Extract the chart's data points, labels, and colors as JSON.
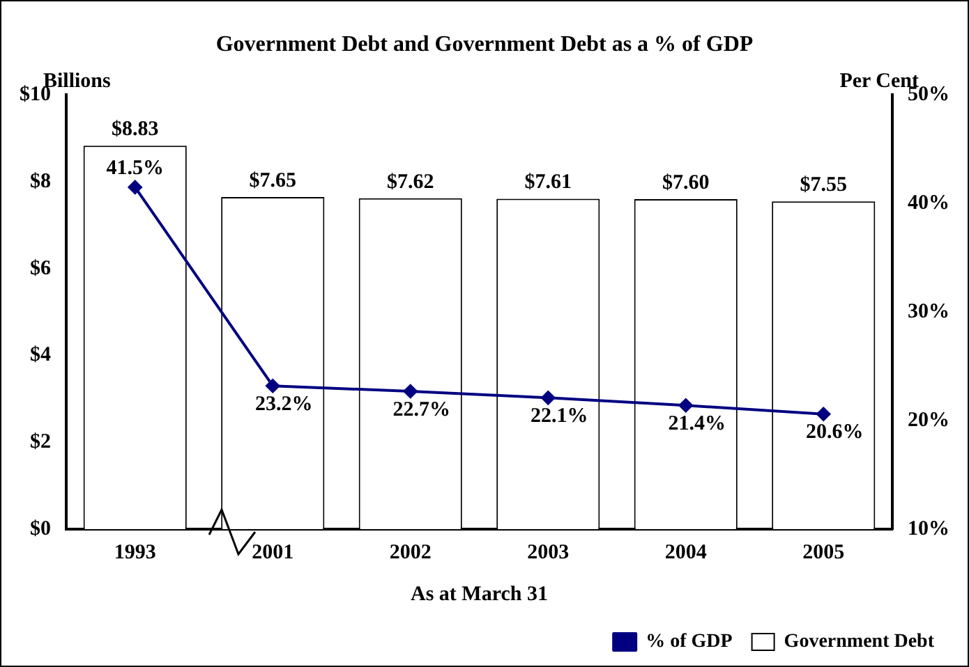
{
  "chart_data": {
    "type": "bar",
    "title": "Government Debt and Government Debt as a % of GDP",
    "ylabel": "Billions",
    "y2label": "Per Cent",
    "xlabel": "As at March 31",
    "categories": [
      "1993",
      "2001",
      "2002",
      "2003",
      "2004",
      "2005"
    ],
    "series": [
      {
        "name": "Government Debt",
        "color": "#000000",
        "values": [
          8.83,
          7.65,
          7.62,
          7.61,
          7.6,
          7.55
        ],
        "value_labels": [
          "$8.83",
          "$7.65",
          "$7.62",
          "$7.61",
          "$7.60",
          "$7.55"
        ]
      },
      {
        "name": "% of GDP",
        "type": "line",
        "axis": "y2",
        "color": "#000080",
        "marker": "diamond",
        "values": [
          41.5,
          23.2,
          22.7,
          22.1,
          21.4,
          20.6
        ],
        "value_labels": [
          "41.5%",
          "23.2%",
          "22.7%",
          "22.1%",
          "21.4%",
          "20.6%"
        ]
      }
    ],
    "ylim": [
      0,
      10
    ],
    "yticks": [
      {
        "value": 0,
        "label": "$0"
      },
      {
        "value": 2,
        "label": "$2"
      },
      {
        "value": 4,
        "label": "$4"
      },
      {
        "value": 6,
        "label": "$6"
      },
      {
        "value": 8,
        "label": "$8"
      },
      {
        "value": 10,
        "label": "$10"
      }
    ],
    "y2lim": [
      10,
      50
    ],
    "y2ticks": [
      {
        "value": 10,
        "label": "10%"
      },
      {
        "value": 20,
        "label": "20%"
      },
      {
        "value": 30,
        "label": "30%"
      },
      {
        "value": 40,
        "label": "40%"
      },
      {
        "value": 50,
        "label": "50%"
      }
    ],
    "grid": false,
    "legend": "bottom right"
  }
}
